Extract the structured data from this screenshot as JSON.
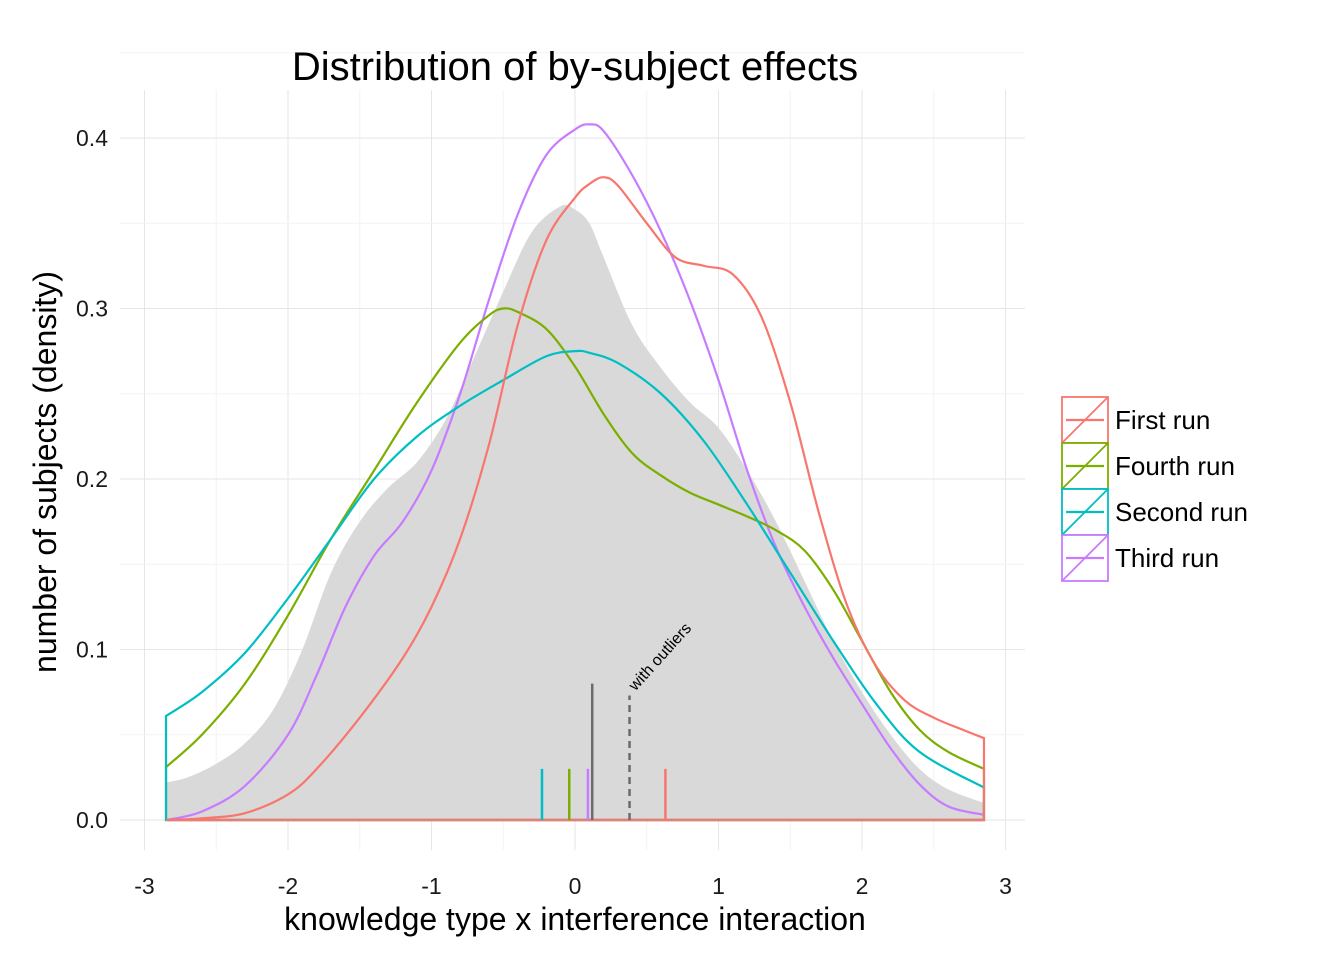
{
  "chart_data": {
    "type": "area",
    "title": "Distribution of by-subject effects",
    "xlabel": "knowledge type x interference interaction",
    "ylabel": "number of subjects (density)",
    "xlim": [
      -3,
      3
    ],
    "ylim": [
      0,
      0.4
    ],
    "x_ticks": [
      "-3",
      "-2",
      "-1",
      "0",
      "1",
      "2",
      "3"
    ],
    "y_ticks": [
      "0.0",
      "0.1",
      "0.2",
      "0.3",
      "0.4"
    ],
    "grid": true,
    "legend_position": "right",
    "overall_density": {
      "color": "#d9d9d9",
      "x": [
        -2.85,
        -2.7,
        -2.5,
        -2.3,
        -2.1,
        -1.9,
        -1.7,
        -1.5,
        -1.3,
        -1.1,
        -0.9,
        -0.7,
        -0.5,
        -0.3,
        -0.1,
        0.0,
        0.1,
        0.2,
        0.4,
        0.6,
        0.8,
        1.0,
        1.2,
        1.4,
        1.6,
        1.8,
        2.0,
        2.2,
        2.4,
        2.6,
        2.85
      ],
      "y": [
        0.022,
        0.025,
        0.033,
        0.045,
        0.065,
        0.1,
        0.145,
        0.175,
        0.195,
        0.21,
        0.235,
        0.272,
        0.31,
        0.345,
        0.36,
        0.358,
        0.35,
        0.33,
        0.29,
        0.265,
        0.245,
        0.23,
        0.205,
        0.175,
        0.14,
        0.105,
        0.075,
        0.05,
        0.03,
        0.018,
        0.01
      ]
    },
    "series": [
      {
        "name": "First run",
        "color": "#F8766D",
        "x": [
          -2.85,
          -2.6,
          -2.3,
          -2.0,
          -1.8,
          -1.5,
          -1.2,
          -1.0,
          -0.8,
          -0.6,
          -0.4,
          -0.2,
          0.0,
          0.1,
          0.2,
          0.3,
          0.5,
          0.7,
          0.9,
          1.1,
          1.3,
          1.5,
          1.7,
          1.9,
          2.1,
          2.3,
          2.5,
          2.7,
          2.85
        ],
        "y": [
          0.0,
          0.001,
          0.004,
          0.015,
          0.03,
          0.06,
          0.095,
          0.125,
          0.165,
          0.22,
          0.29,
          0.34,
          0.365,
          0.373,
          0.377,
          0.372,
          0.35,
          0.33,
          0.325,
          0.32,
          0.295,
          0.245,
          0.18,
          0.125,
          0.09,
          0.07,
          0.06,
          0.053,
          0.048
        ],
        "mean": 0.63,
        "rug_height": 0.03
      },
      {
        "name": "Fourth run",
        "color": "#7CAE00",
        "x": [
          -2.85,
          -2.6,
          -2.3,
          -2.0,
          -1.7,
          -1.4,
          -1.1,
          -0.8,
          -0.6,
          -0.5,
          -0.4,
          -0.2,
          0.0,
          0.2,
          0.4,
          0.6,
          0.8,
          1.0,
          1.2,
          1.4,
          1.6,
          1.8,
          2.0,
          2.2,
          2.4,
          2.6,
          2.85
        ],
        "y": [
          0.031,
          0.05,
          0.08,
          0.12,
          0.165,
          0.205,
          0.245,
          0.28,
          0.296,
          0.3,
          0.298,
          0.288,
          0.266,
          0.238,
          0.215,
          0.202,
          0.192,
          0.185,
          0.178,
          0.17,
          0.158,
          0.135,
          0.105,
          0.075,
          0.053,
          0.04,
          0.03
        ],
        "mean": -0.04,
        "rug_height": 0.03
      },
      {
        "name": "Second run",
        "color": "#00BFC4",
        "x": [
          -2.85,
          -2.6,
          -2.3,
          -2.0,
          -1.7,
          -1.4,
          -1.1,
          -0.8,
          -0.5,
          -0.2,
          0.0,
          0.1,
          0.3,
          0.6,
          0.9,
          1.2,
          1.5,
          1.8,
          2.1,
          2.4,
          2.85
        ],
        "y": [
          0.061,
          0.075,
          0.098,
          0.13,
          0.165,
          0.2,
          0.225,
          0.243,
          0.258,
          0.272,
          0.275,
          0.274,
          0.268,
          0.25,
          0.222,
          0.185,
          0.145,
          0.105,
          0.068,
          0.04,
          0.019
        ],
        "mean": -0.23,
        "rug_height": 0.03
      },
      {
        "name": "Third run",
        "color": "#C77CFF",
        "x": [
          -2.85,
          -2.6,
          -2.3,
          -2.0,
          -1.8,
          -1.6,
          -1.4,
          -1.2,
          -1.0,
          -0.8,
          -0.6,
          -0.4,
          -0.2,
          0.0,
          0.1,
          0.2,
          0.4,
          0.6,
          0.8,
          1.0,
          1.2,
          1.4,
          1.6,
          1.8,
          2.0,
          2.2,
          2.4,
          2.6,
          2.85
        ],
        "y": [
          0.0,
          0.005,
          0.02,
          0.05,
          0.085,
          0.125,
          0.155,
          0.175,
          0.205,
          0.25,
          0.305,
          0.355,
          0.39,
          0.405,
          0.408,
          0.404,
          0.378,
          0.345,
          0.305,
          0.258,
          0.205,
          0.16,
          0.125,
          0.095,
          0.068,
          0.042,
          0.021,
          0.008,
          0.003
        ],
        "mean": 0.09,
        "rug_height": 0.03
      }
    ],
    "overall_mean": {
      "x": 0.12,
      "height": 0.08,
      "color": "#6b6b6b"
    },
    "outlier_mean": {
      "x": 0.38,
      "height": 0.073,
      "color": "#6b6b6b",
      "label": "with outliers"
    }
  }
}
